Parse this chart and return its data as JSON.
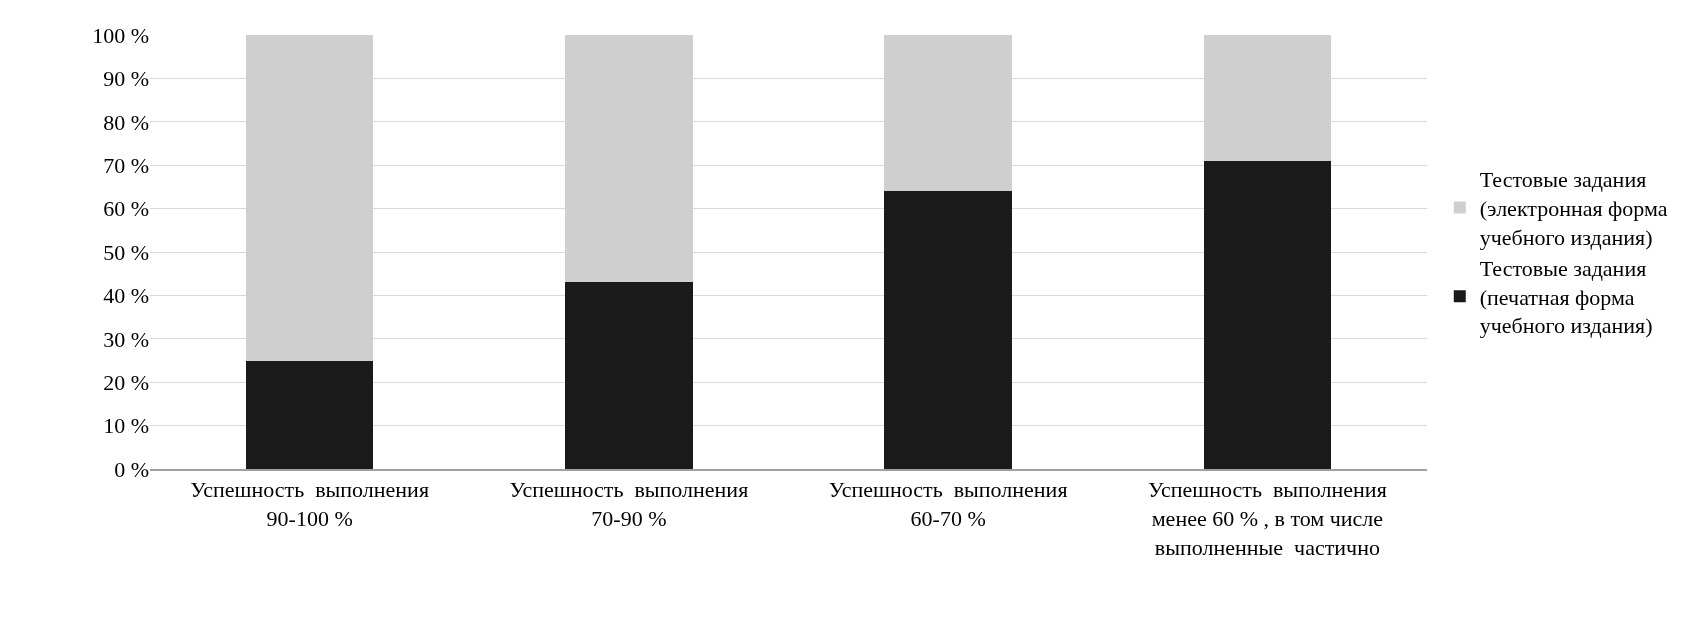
{
  "chart_data": {
    "type": "bar",
    "stacked": true,
    "categories": [
      "Успешность  выполнения\n90-100 %",
      "Успешность  выполнения\n70-90 %",
      "Успешность  выполнения\n60-70 %",
      "Успешность  выполнения\nменее 60 % , в том числе\nвыполненные  частично"
    ],
    "series": [
      {
        "name": "Тестовые задания (печатная форма учебного издания)",
        "color": "#1a1a1a",
        "values": [
          25,
          43,
          64,
          71
        ]
      },
      {
        "name": "Тестовые задания (электронная форма учебного издания)",
        "color": "#cfcfcf",
        "values": [
          75,
          57,
          36,
          29
        ]
      }
    ],
    "ylim": [
      0,
      100
    ],
    "yticks": [
      {
        "value": 0,
        "label": "0 %"
      },
      {
        "value": 10,
        "label": "10 %"
      },
      {
        "value": 20,
        "label": "20 %"
      },
      {
        "value": 30,
        "label": "30 %"
      },
      {
        "value": 40,
        "label": "40 %"
      },
      {
        "value": 50,
        "label": "50 %"
      },
      {
        "value": 60,
        "label": "60 %"
      },
      {
        "value": 70,
        "label": "70 %"
      },
      {
        "value": 80,
        "label": "80 %"
      },
      {
        "value": 90,
        "label": "90 %"
      },
      {
        "value": 100,
        "label": "100 %"
      }
    ],
    "grid": "y",
    "legend": "right"
  }
}
